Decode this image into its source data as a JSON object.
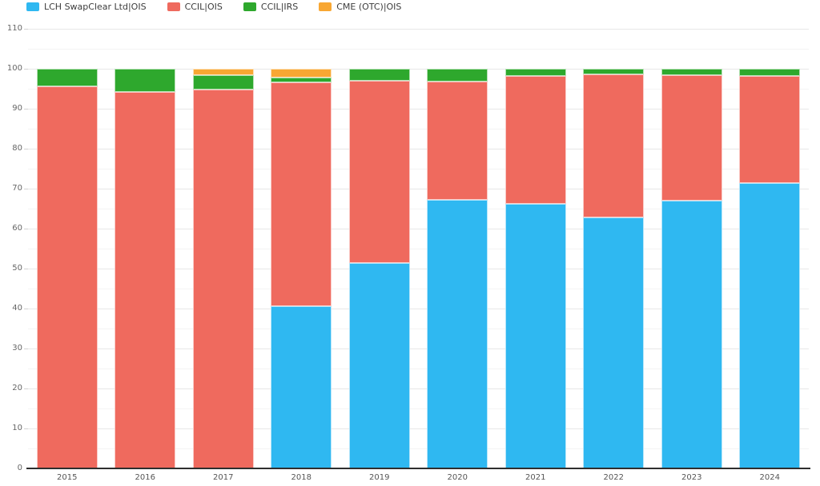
{
  "chart_data": {
    "type": "bar",
    "stacked": true,
    "title": "",
    "xlabel": "",
    "ylabel": "",
    "ylim": [
      0,
      110
    ],
    "y_major_step": 10,
    "y_minor_step": 5,
    "grid": true,
    "legend_position": "top-left",
    "categories": [
      "2015",
      "2016",
      "2017",
      "2018",
      "2019",
      "2020",
      "2021",
      "2022",
      "2023",
      "2024"
    ],
    "series": [
      {
        "name": "LCH SwapClear Ltd|OIS",
        "color": "#2FB8F1",
        "values": [
          0,
          0,
          0,
          40.7,
          51.5,
          67.2,
          66.2,
          62.8,
          67.0,
          71.5
        ]
      },
      {
        "name": "CCIL|OIS",
        "color": "#EF6A5E",
        "values": [
          95.6,
          94.2,
          94.9,
          55.9,
          45.6,
          29.7,
          32.0,
          35.9,
          31.4,
          26.8
        ]
      },
      {
        "name": "CCIL|IRS",
        "color": "#2EA82D",
        "values": [
          4.4,
          5.8,
          3.5,
          1.3,
          2.9,
          3.1,
          1.8,
          1.3,
          1.6,
          1.7
        ]
      },
      {
        "name": "CME (OTC)|OIS",
        "color": "#F8A733",
        "values": [
          0,
          0,
          1.6,
          2.1,
          0,
          0,
          0,
          0,
          0,
          0
        ]
      }
    ]
  }
}
